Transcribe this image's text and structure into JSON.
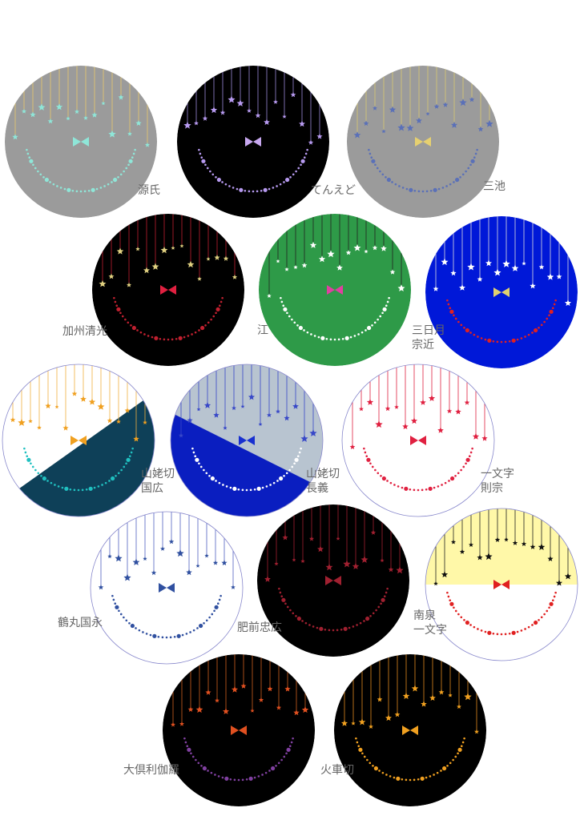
{
  "items": [
    {
      "label": [
        "源氏"
      ]
    },
    {
      "label": [
        "てんえど"
      ]
    },
    {
      "label": [
        "三池"
      ]
    },
    {
      "label": [
        "加州清光"
      ]
    },
    {
      "label": [
        "江"
      ]
    },
    {
      "label": [
        "三日月",
        "宗近"
      ]
    },
    {
      "label": [
        "山姥切",
        "国広"
      ]
    },
    {
      "label": [
        "山姥切",
        "長義"
      ]
    },
    {
      "label": [
        "一文字",
        "則宗"
      ]
    },
    {
      "label": [
        "鶴丸国永"
      ]
    },
    {
      "label": [
        "肥前忠広"
      ]
    },
    {
      "label": [
        "南泉",
        "一文字"
      ]
    },
    {
      "label": [
        "大倶利伽羅"
      ]
    },
    {
      "label": [
        "火車切"
      ]
    }
  ]
}
